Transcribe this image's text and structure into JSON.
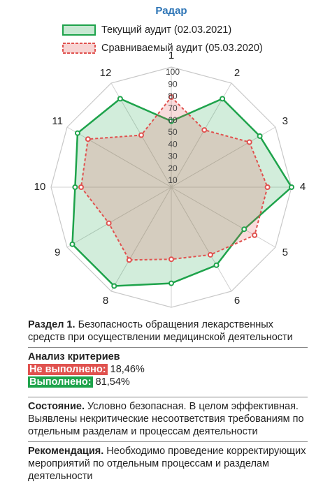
{
  "chart_data": {
    "type": "radar",
    "title": "Радар",
    "categories": [
      "1",
      "2",
      "3",
      "4",
      "5",
      "6",
      "7",
      "8",
      "9",
      "10",
      "11",
      "12"
    ],
    "series": [
      {
        "name": "Текущий аудит (02.03.2021)",
        "color": "#1ea34b",
        "values": [
          55,
          85,
          85,
          100,
          70,
          75,
          80,
          95,
          95,
          80,
          90,
          85
        ]
      },
      {
        "name": "Сравниваемый аудит (05.03.2020)",
        "color": "#e0524f",
        "values": [
          75,
          55,
          75,
          80,
          80,
          65,
          60,
          70,
          60,
          75,
          80,
          50
        ]
      }
    ],
    "ylim": [
      0,
      100
    ],
    "yticks": [
      10,
      20,
      30,
      40,
      50,
      60,
      70,
      80,
      90,
      100
    ],
    "grid": true,
    "legend": "top"
  },
  "section": {
    "label": "Раздел 1.",
    "text": "Безопасность обращения лекарственных средств при осуществлении медицинской деятельности"
  },
  "analysis": {
    "title": "Анализ критериев",
    "items": [
      {
        "label": "Не выполнено:",
        "value": "18,46%",
        "color": "#e0524f"
      },
      {
        "label": "Выполнено:",
        "value": "81,54%",
        "color": "#1ea34b"
      }
    ]
  },
  "status": {
    "label": "Состояние.",
    "text": "Условно безопасная. В целом эффективная. Выявлены некритические несоответствия требованиям по отдельным разделам и процессам деятельности"
  },
  "recommendation": {
    "label": "Рекомендация.",
    "text": "Необходимо проведение корректирующих мероприятий по отдельным процессам и разделам деятельности"
  }
}
